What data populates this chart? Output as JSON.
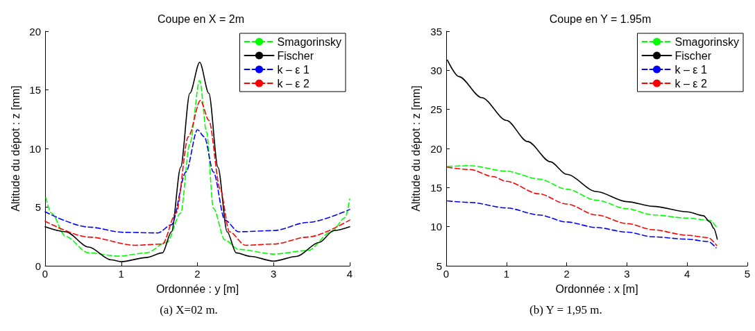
{
  "chart_data": [
    {
      "type": "line",
      "title": "Coupe en X = 2m",
      "xlabel": "Ordonnée : y [m]",
      "ylabel": "Altitude du dépot : z [mm]",
      "xlim": [
        0,
        4
      ],
      "xticks": [
        0,
        1,
        2,
        3,
        4
      ],
      "ylim": [
        0,
        20
      ],
      "yticks": [
        0,
        5,
        10,
        15,
        20
      ],
      "grid": false,
      "legend": "top right",
      "marker": "none",
      "annotations": [
        "(a) X=02 m."
      ],
      "series": [
        {
          "name": "Smagorinsky",
          "color": "#00ff00",
          "line_style": "dashed",
          "x": [
            0.01,
            0.08,
            0.27,
            0.57,
            0.97,
            1.33,
            1.6,
            1.78,
            1.9,
            2.03,
            2.12,
            2.21,
            2.36,
            2.54,
            3.0,
            3.45,
            3.76,
            3.94,
            4.0
          ],
          "values": [
            5.8,
            4.5,
            2.5,
            1.1,
            0.82,
            1.1,
            2.0,
            4.5,
            10.4,
            15.8,
            11.4,
            4.9,
            2.2,
            1.4,
            1.0,
            1.3,
            2.9,
            4.1,
            5.7
          ]
        },
        {
          "name": "Fischer",
          "color": "#000000",
          "line_style": "solid",
          "x": [
            0,
            0.27,
            0.57,
            0.87,
            1.0,
            1.33,
            1.54,
            1.66,
            1.78,
            1.9,
            2.03,
            2.15,
            2.27,
            2.39,
            2.51,
            2.7,
            3.0,
            3.3,
            3.6,
            3.79,
            4.0
          ],
          "values": [
            3.33,
            2.9,
            1.6,
            0.5,
            0.35,
            0.7,
            1.1,
            2.9,
            8.4,
            14.7,
            17.35,
            14.7,
            8.4,
            2.9,
            1.1,
            0.8,
            0.4,
            0.8,
            2.0,
            3.0,
            3.33
          ]
        },
        {
          "name": "k – ε 1",
          "color": "#0000ff",
          "line_style": "dashed",
          "x": [
            0,
            0.57,
            1.03,
            1.48,
            1.66,
            1.85,
            2.0,
            2.09,
            2.21,
            2.36,
            2.54,
            3.0,
            3.45,
            4.0
          ],
          "values": [
            4.6,
            3.3,
            2.85,
            2.8,
            3.5,
            8.0,
            11.6,
            11.0,
            8.0,
            3.9,
            2.9,
            3.0,
            3.7,
            4.8
          ]
        },
        {
          "name": "k – ε 2",
          "color": "#ff0000",
          "line_style": "dashed",
          "x": [
            0,
            0.57,
            1.18,
            1.54,
            1.72,
            1.88,
            2.04,
            2.15,
            2.3,
            2.42,
            2.63,
            3.0,
            3.45,
            4.0
          ],
          "values": [
            3.8,
            2.45,
            1.75,
            1.85,
            4.5,
            11.0,
            14.1,
            12.4,
            6.5,
            2.9,
            1.75,
            1.85,
            2.45,
            3.9
          ]
        }
      ]
    },
    {
      "type": "line",
      "title": "Coupe en Y = 1.95m",
      "xlabel": "Ordonnée : x [m]",
      "ylabel": "Altitude du dépot : z [mm]",
      "xlim": [
        0,
        5
      ],
      "xticks": [
        0,
        1,
        2,
        3,
        4,
        5
      ],
      "ylim": [
        5,
        35
      ],
      "yticks": [
        5,
        10,
        15,
        20,
        25,
        30,
        35
      ],
      "grid": false,
      "legend": "top right",
      "marker": "none",
      "annotations": [
        "(b) Y = 1,95 m."
      ],
      "series": [
        {
          "name": "Smagorinsky",
          "color": "#00ff00",
          "line_style": "dashed",
          "x": [
            0.02,
            0.4,
            1.0,
            1.54,
            2.0,
            2.49,
            3.0,
            3.44,
            4.0,
            4.38,
            4.5
          ],
          "values": [
            17.7,
            17.8,
            17.1,
            16.1,
            14.8,
            13.4,
            12.3,
            11.5,
            11.1,
            10.8,
            9.8
          ]
        },
        {
          "name": "Fischer",
          "color": "#000000",
          "line_style": "solid",
          "x": [
            0.02,
            0.21,
            0.59,
            1.0,
            1.35,
            1.73,
            2.0,
            2.49,
            3.0,
            3.44,
            4.0,
            4.27,
            4.38,
            4.44,
            4.5
          ],
          "values": [
            31.3,
            29.2,
            26.5,
            23.6,
            20.9,
            18.3,
            16.7,
            14.5,
            13.2,
            12.6,
            11.9,
            11.4,
            10.6,
            9.8,
            8.4
          ]
        },
        {
          "name": "k – ε 1",
          "color": "#0000ff",
          "line_style": "dashed",
          "x": [
            0.02,
            0.4,
            1.0,
            1.54,
            2.0,
            2.49,
            3.0,
            3.44,
            4.0,
            4.35,
            4.48
          ],
          "values": [
            13.3,
            13.1,
            12.4,
            11.5,
            10.6,
            9.9,
            9.3,
            8.7,
            8.4,
            8.1,
            7.3
          ]
        },
        {
          "name": "k – ε 2",
          "color": "#ff0000",
          "line_style": "dashed",
          "x": [
            0.02,
            0.4,
            0.78,
            1.0,
            1.54,
            2.0,
            2.49,
            3.0,
            3.44,
            4.0,
            4.35,
            4.49
          ],
          "values": [
            17.6,
            17.3,
            16.4,
            15.8,
            14.2,
            12.9,
            11.5,
            10.4,
            9.6,
            8.9,
            8.6,
            7.6
          ]
        }
      ]
    }
  ]
}
